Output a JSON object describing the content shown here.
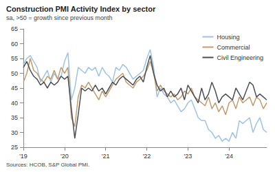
{
  "chart_data": {
    "type": "line",
    "title": "Construction PMI Activity Index by sector",
    "subtitle": "sa, >50 = growth since previous month",
    "annotations": [
      "Sources: HCOB, S&P Global PMI."
    ],
    "categories": [
      "'19",
      null,
      null,
      null,
      null,
      null,
      null,
      null,
      null,
      null,
      null,
      null,
      "'20",
      null,
      null,
      null,
      null,
      null,
      null,
      null,
      null,
      null,
      null,
      null,
      "'21",
      null,
      null,
      null,
      null,
      null,
      null,
      null,
      null,
      null,
      null,
      null,
      "'22",
      null,
      null,
      null,
      null,
      null,
      null,
      null,
      null,
      null,
      null,
      null,
      "'23",
      null,
      null,
      null,
      null,
      null,
      null,
      null,
      null,
      null,
      null,
      null,
      "'24",
      null,
      null,
      null,
      null,
      null,
      null,
      null,
      null,
      null,
      null,
      null
    ],
    "series": [
      {
        "name": "Housing",
        "color": "#9dc3e6",
        "values": [
          53,
          55,
          56,
          54,
          52,
          47,
          49,
          51,
          47,
          50,
          48,
          49,
          54,
          57,
          41,
          45,
          52,
          51,
          50,
          52,
          51,
          52,
          49,
          52,
          50,
          49,
          47,
          52,
          51,
          53,
          52,
          50,
          48,
          49,
          50,
          51,
          55,
          58,
          52,
          42,
          45,
          43,
          42,
          40,
          41,
          39,
          37,
          38,
          40,
          41,
          38,
          35,
          34,
          34,
          31,
          30,
          28,
          29,
          27,
          28,
          27,
          30,
          28,
          34,
          33,
          34,
          35,
          30,
          33,
          35,
          31,
          30
        ]
      },
      {
        "name": "Commercial",
        "color": "#c49a6c",
        "values": [
          47,
          50,
          55,
          51,
          50,
          48,
          47,
          49,
          48,
          51,
          48,
          52,
          50,
          52,
          35,
          32,
          42,
          46,
          45,
          47,
          45,
          43,
          41,
          44,
          42,
          44,
          46,
          48,
          49,
          50,
          47,
          46,
          45,
          47,
          48,
          49,
          51,
          54,
          50,
          44,
          46,
          44,
          43,
          42,
          43,
          41,
          42,
          44,
          43,
          45,
          42,
          41,
          40,
          39,
          42,
          38,
          40,
          37,
          39,
          36,
          40,
          41,
          38,
          42,
          40,
          41,
          42,
          39,
          42,
          41,
          38,
          40
        ]
      },
      {
        "name": "Civil Engineering",
        "color": "#4a4f55",
        "values": [
          52,
          54,
          51,
          49,
          48,
          46,
          47,
          45,
          47,
          46,
          47,
          49,
          48,
          49,
          38,
          28,
          36,
          45,
          44,
          45,
          44,
          46,
          44,
          45,
          43,
          45,
          47,
          46,
          48,
          49,
          48,
          47,
          46,
          48,
          49,
          47,
          52,
          56,
          50,
          46,
          44,
          45,
          42,
          44,
          42,
          43,
          45,
          41,
          46,
          44,
          42,
          40,
          45,
          41,
          43,
          47,
          44,
          40,
          42,
          43,
          42,
          41,
          45,
          43,
          41,
          44,
          47,
          46,
          42,
          43,
          42,
          41
        ]
      }
    ],
    "ylim": [
      25,
      65
    ],
    "yticks": [
      25,
      30,
      35,
      40,
      45,
      50,
      55,
      60,
      65
    ],
    "grid": false,
    "legend": "upper right"
  }
}
